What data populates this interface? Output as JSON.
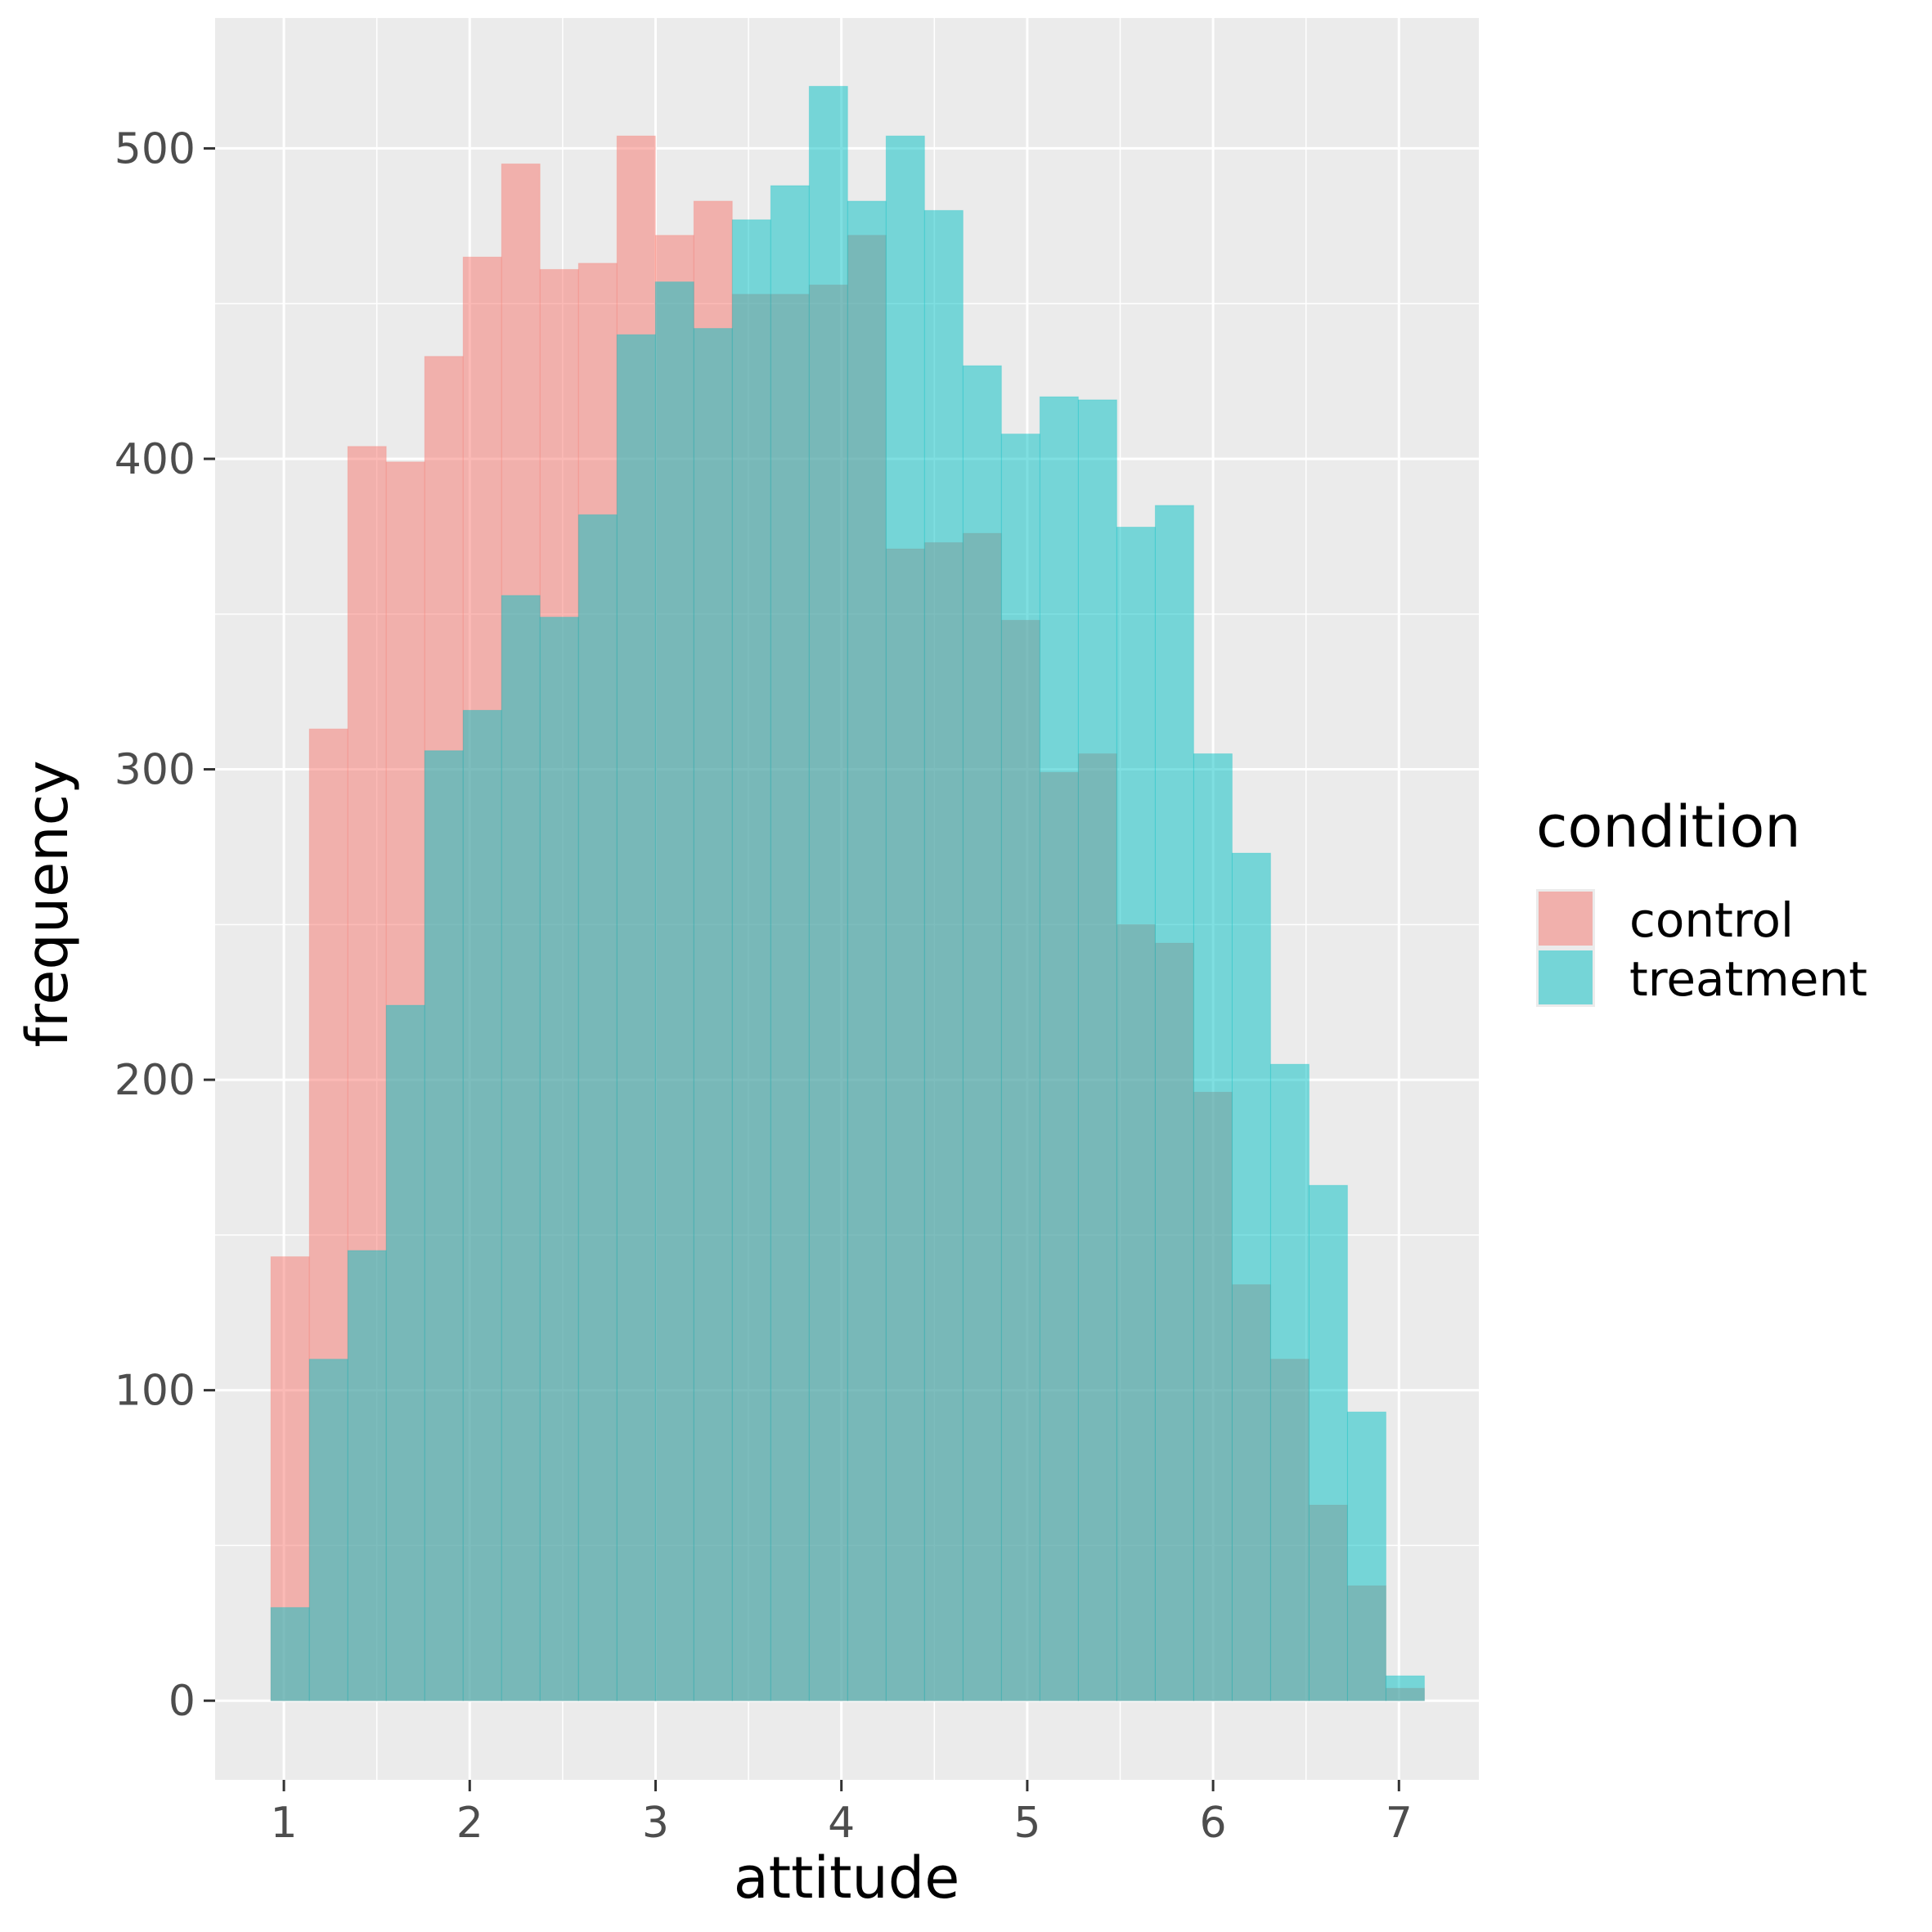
{
  "chart_data": {
    "type": "bar",
    "subtype": "overlapping-histogram",
    "xlabel": "attitude",
    "ylabel": "frequency",
    "xlim": [
      0.63,
      7.43
    ],
    "ylim": [
      -25.5,
      542
    ],
    "x_ticks": [
      1,
      2,
      3,
      4,
      5,
      6,
      7
    ],
    "y_ticks": [
      0,
      100,
      200,
      300,
      400,
      500
    ],
    "bin_width": 0.2069,
    "bin_start": 0.93,
    "bin_count": 30,
    "grid": true,
    "legend": {
      "title": "condition",
      "position": "right"
    },
    "series": [
      {
        "name": "control",
        "color": "#F8766D",
        "values": [
          143,
          313,
          404,
          399,
          433,
          465,
          495,
          461,
          463,
          504,
          472,
          483,
          453,
          453,
          456,
          472,
          371,
          373,
          376,
          348,
          299,
          305,
          250,
          244,
          196,
          134,
          110,
          63,
          37,
          4
        ]
      },
      {
        "name": "treatment",
        "color": "#00BFC4",
        "values": [
          30,
          110,
          145,
          224,
          306,
          319,
          356,
          349,
          382,
          440,
          457,
          442,
          477,
          488,
          520,
          483,
          504,
          480,
          430,
          408,
          420,
          419,
          378,
          385,
          305,
          273,
          205,
          166,
          93,
          8
        ]
      }
    ]
  }
}
